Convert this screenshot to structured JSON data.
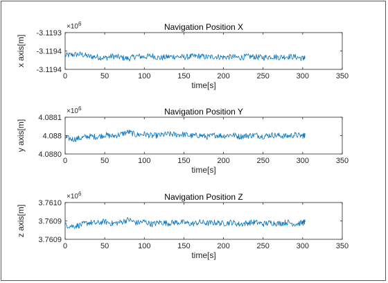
{
  "chart_data": [
    {
      "type": "line",
      "title": "Navigation Position X",
      "xlabel": "time[s]",
      "ylabel": "x axis[m]",
      "multiplier_label": "×10",
      "multiplier_exponent": "6",
      "xlim": [
        0,
        350
      ],
      "xticks": [
        "0",
        "50",
        "100",
        "150",
        "200",
        "250",
        "300",
        "350"
      ],
      "yticks": [
        "-3.1193",
        "-3.1194",
        "-3.1194"
      ],
      "ylim": [
        -3.11945,
        -3.11925
      ],
      "series_color": "#0072BD",
      "series": [
        {
          "x": [
            0,
            10,
            20,
            30,
            40,
            50,
            60,
            70,
            80,
            90,
            100,
            110,
            120,
            130,
            140,
            150,
            160,
            170,
            180,
            190,
            200,
            210,
            220,
            230,
            240,
            250,
            260,
            270,
            280,
            290,
            300,
            303
          ],
          "values": [
            -3.119375,
            -3.11937,
            -3.119368,
            -3.11938,
            -3.119382,
            -3.119388,
            -3.119378,
            -3.119385,
            -3.119392,
            -3.119378,
            -3.119382,
            -3.119376,
            -3.119388,
            -3.119382,
            -3.11938,
            -3.119384,
            -3.11938,
            -3.119378,
            -3.119384,
            -3.11938,
            -3.119384,
            -3.119382,
            -3.119386,
            -3.11938,
            -3.119382,
            -3.119386,
            -3.11938,
            -3.119384,
            -3.11938,
            -3.119382,
            -3.11939,
            -3.11939
          ]
        }
      ]
    },
    {
      "type": "line",
      "title": "Navigation Position Y",
      "xlabel": "time[s]",
      "ylabel": "y axis[m]",
      "multiplier_label": "×10",
      "multiplier_exponent": "6",
      "xlim": [
        0,
        350
      ],
      "xticks": [
        "0",
        "50",
        "100",
        "150",
        "200",
        "250",
        "300",
        "350"
      ],
      "yticks": [
        "4.0881",
        "4.088",
        "4.0880"
      ],
      "ylim": [
        4.08799,
        4.08811
      ],
      "series_color": "#0072BD",
      "series": [
        {
          "x": [
            0,
            10,
            20,
            30,
            40,
            50,
            60,
            70,
            80,
            90,
            100,
            110,
            120,
            130,
            140,
            150,
            160,
            170,
            180,
            190,
            200,
            210,
            220,
            230,
            240,
            250,
            260,
            270,
            280,
            290,
            300,
            303
          ],
          "values": [
            4.088043,
            4.088038,
            4.088042,
            4.088048,
            4.088046,
            4.088052,
            4.088048,
            4.088054,
            4.088062,
            4.088052,
            4.088055,
            4.088049,
            4.088051,
            4.088055,
            4.088053,
            4.088054,
            4.088049,
            4.088051,
            4.088046,
            4.088052,
            4.088049,
            4.088053,
            4.088047,
            4.08805,
            4.088052,
            4.088048,
            4.088052,
            4.08805,
            4.088048,
            4.088052,
            4.088049,
            4.088052
          ]
        }
      ]
    },
    {
      "type": "line",
      "title": "Navigation Position Z",
      "xlabel": "time[s]",
      "ylabel": "z axis[m]",
      "multiplier_label": "×10",
      "multiplier_exponent": "6",
      "xlim": [
        0,
        350
      ],
      "xticks": [
        "0",
        "50",
        "100",
        "150",
        "200",
        "250",
        "300",
        "350"
      ],
      "yticks": [
        "3.7610",
        "3.7609",
        "3.7609"
      ],
      "ylim": [
        3.760875,
        3.760985
      ],
      "series_color": "#0072BD",
      "series": [
        {
          "x": [
            0,
            10,
            20,
            30,
            40,
            50,
            60,
            70,
            80,
            90,
            100,
            110,
            120,
            130,
            140,
            150,
            160,
            170,
            180,
            190,
            200,
            210,
            220,
            230,
            240,
            250,
            260,
            270,
            280,
            290,
            300,
            303
          ],
          "values": [
            3.760918,
            3.760914,
            3.760918,
            3.760925,
            3.760923,
            3.760928,
            3.760922,
            3.760926,
            3.760934,
            3.760924,
            3.760928,
            3.76092,
            3.760926,
            3.760923,
            3.760926,
            3.760925,
            3.760921,
            3.760926,
            3.760923,
            3.760925,
            3.760922,
            3.760926,
            3.76092,
            3.760924,
            3.760926,
            3.760921,
            3.760925,
            3.760922,
            3.760926,
            3.760921,
            3.760924,
            3.760927
          ]
        }
      ]
    }
  ]
}
